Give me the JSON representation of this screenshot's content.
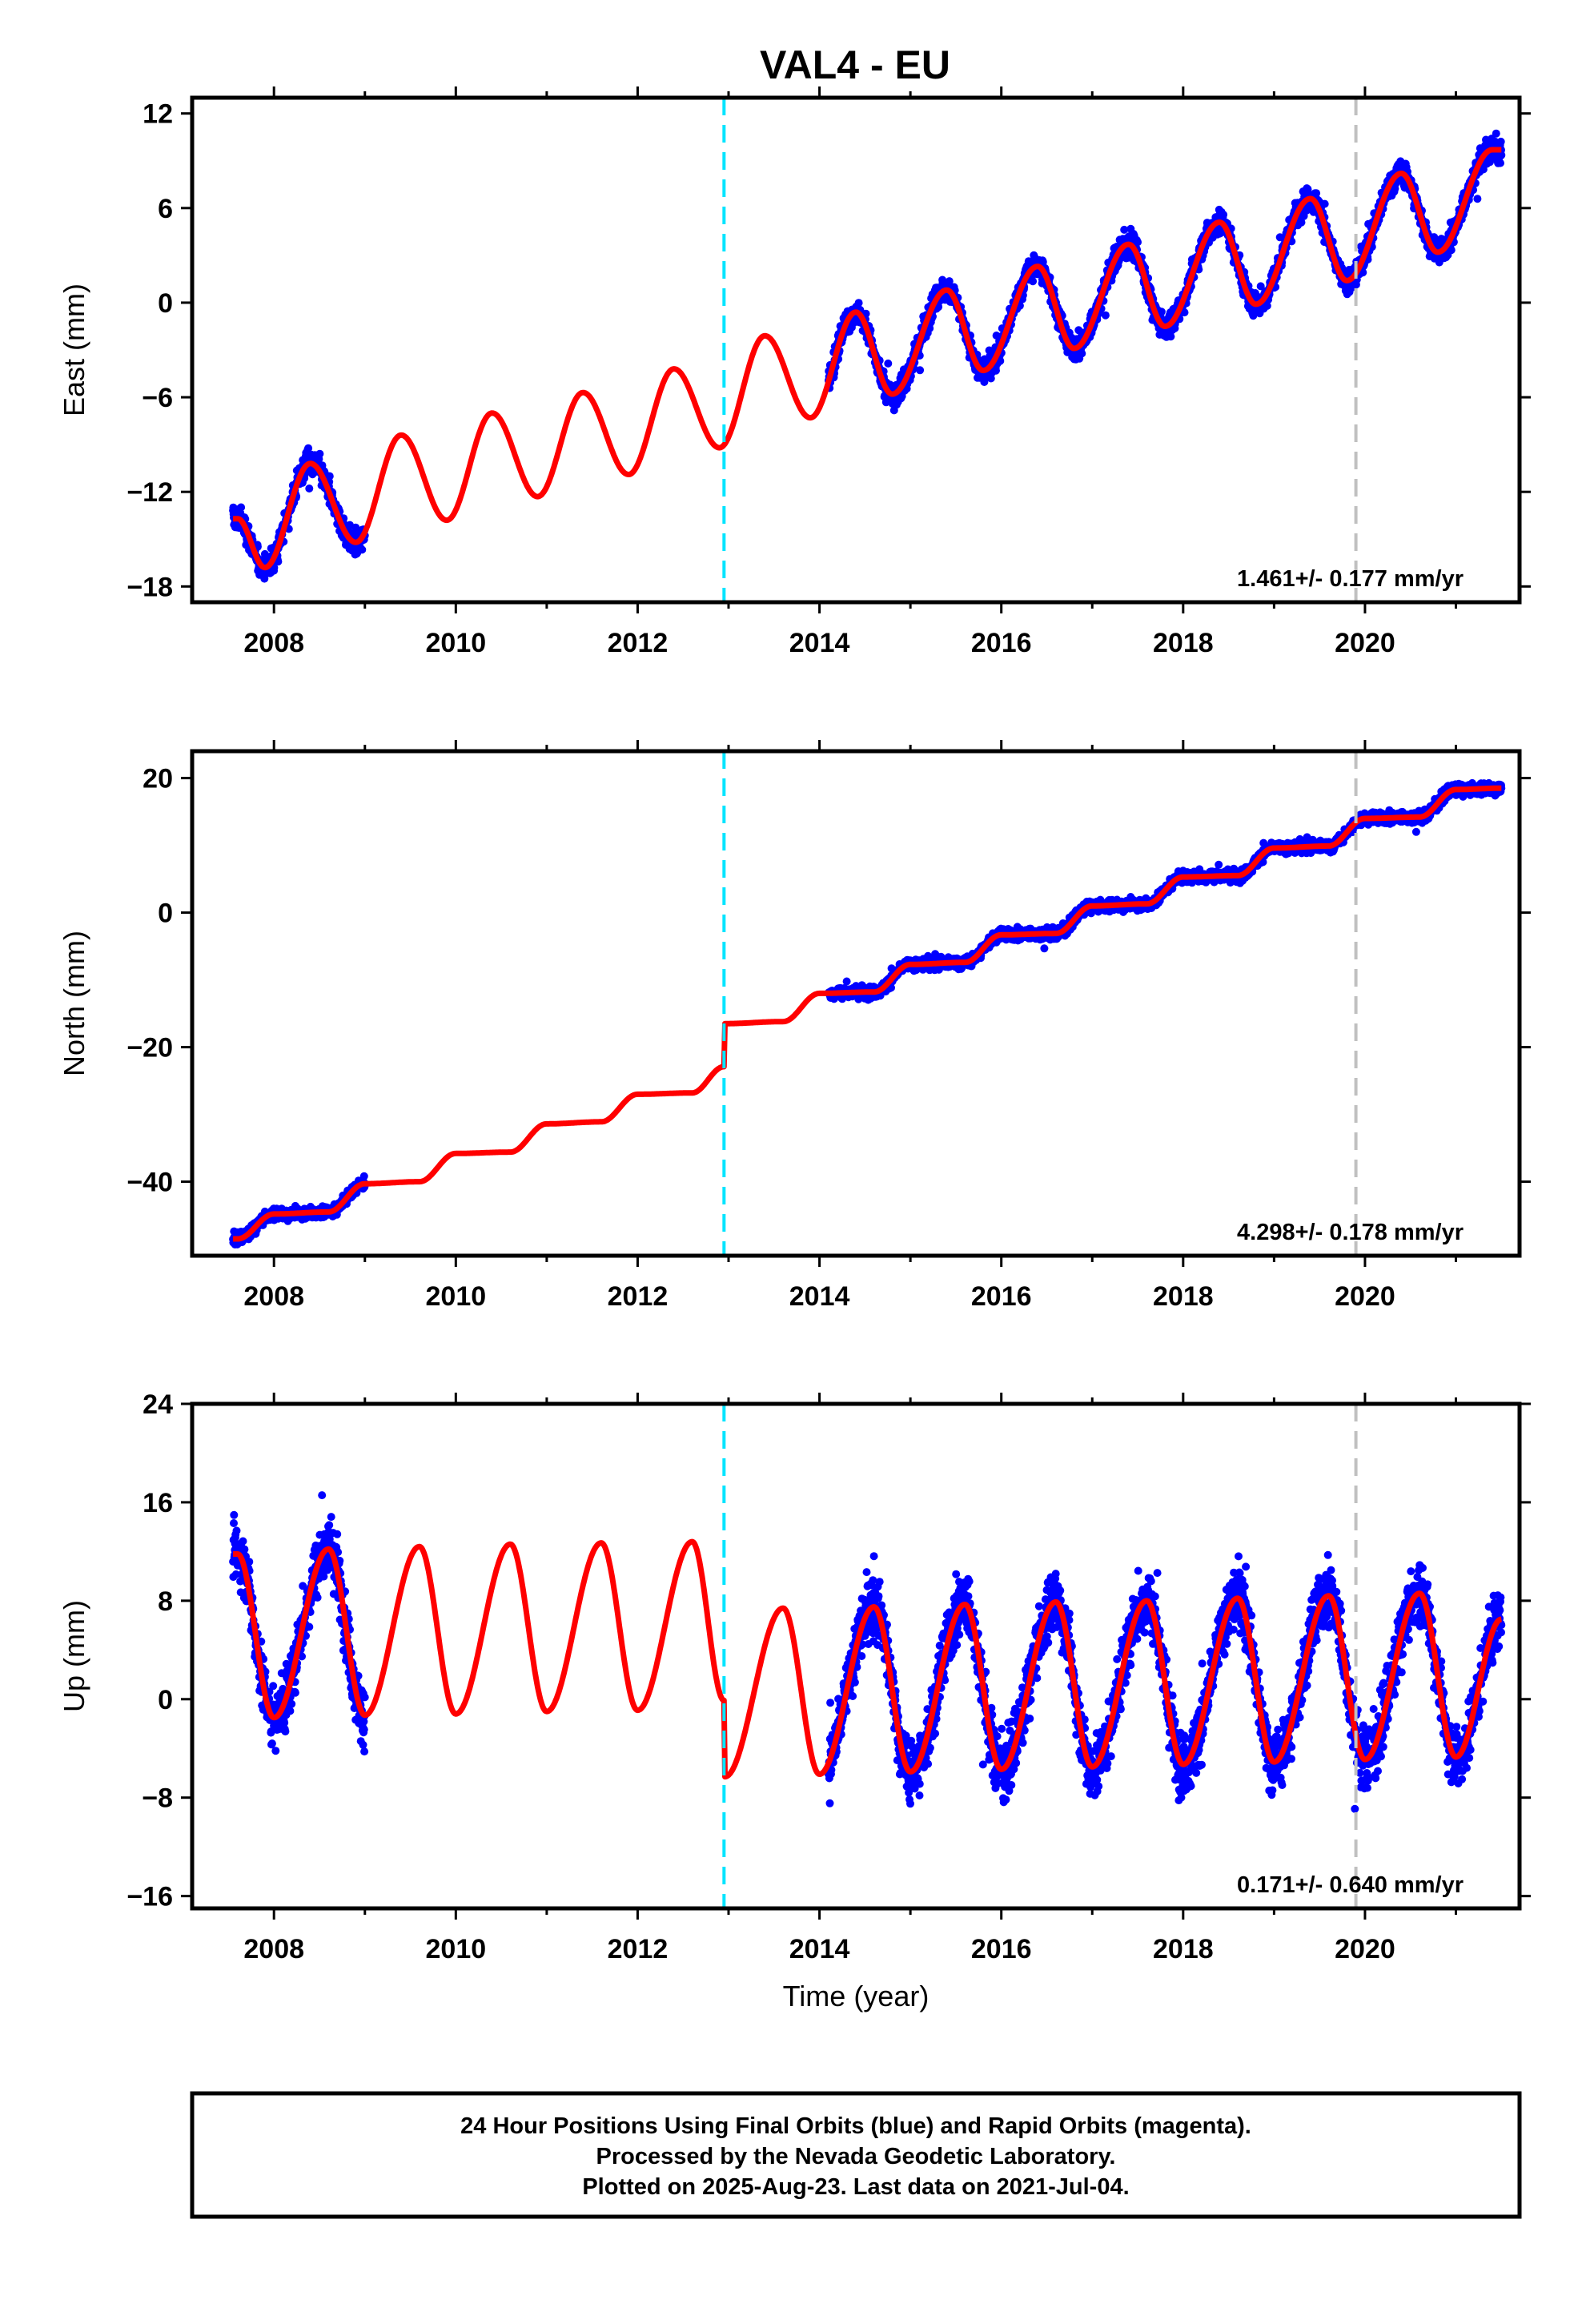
{
  "title": "VAL4 - EU",
  "footer_lines": [
    "24 Hour Positions Using Final Orbits (blue) and Rapid Orbits (magenta).",
    "Processed by the Nevada Geodetic Laboratory.",
    "Plotted on 2025-Aug-23. Last data on 2021-Jul-04."
  ],
  "colors": {
    "data_points": "#0000ff",
    "model_fit": "#ff0000",
    "equipment_change": "#00e5ff",
    "other_marker": "#c0c0c0"
  },
  "markers": {
    "equipment_change_year": 2012.95,
    "other_year": 2019.9
  },
  "chart_data": [
    {
      "type": "scatter",
      "title": "VAL4 - EU",
      "ylabel": "East (mm)",
      "xlabel": "",
      "xlim": [
        2007.1,
        2021.7
      ],
      "ylim": [
        -19,
        13
      ],
      "xticks": [
        2008,
        2010,
        2012,
        2014,
        2016,
        2018,
        2020
      ],
      "yticks": [
        -18,
        -12,
        -6,
        0,
        6,
        12
      ],
      "rate_label": "1.461+/- 0.177 mm/yr",
      "grid": false,
      "series": [
        {
          "name": "24 Hour Positions (Final Orbits)",
          "segments": [
            [
              2007.55,
              2009.0
            ],
            [
              2014.1,
              2021.5
            ]
          ],
          "trend_sample": [
            [
              2007.6,
              -15.5
            ],
            [
              2008.0,
              -16.0
            ],
            [
              2008.4,
              -9.5
            ],
            [
              2008.8,
              -15.5
            ],
            [
              2014.4,
              -1.5
            ],
            [
              2014.8,
              -5.0
            ],
            [
              2015.4,
              0.5
            ],
            [
              2015.8,
              -4.0
            ],
            [
              2016.4,
              2.0
            ],
            [
              2016.8,
              -3.0
            ],
            [
              2017.4,
              3.5
            ],
            [
              2017.8,
              -1.5
            ],
            [
              2018.4,
              4.5
            ],
            [
              2018.8,
              0.0
            ],
            [
              2019.4,
              6.5
            ],
            [
              2019.8,
              1.5
            ],
            [
              2020.4,
              8.0
            ],
            [
              2020.8,
              3.5
            ],
            [
              2021.4,
              9.5
            ]
          ]
        },
        {
          "name": "Model fit",
          "x_range": [
            2007.55,
            2021.5
          ],
          "values": [
            [
              2007.6,
              -13.7
            ],
            [
              2007.9,
              -16.8
            ],
            [
              2008.4,
              -10.2
            ],
            [
              2008.9,
              -15.2
            ],
            [
              2009.4,
              -8.4
            ],
            [
              2009.9,
              -13.8
            ],
            [
              2010.4,
              -7.0
            ],
            [
              2010.9,
              -12.3
            ],
            [
              2011.4,
              -5.7
            ],
            [
              2011.9,
              -10.9
            ],
            [
              2012.4,
              -4.2
            ],
            [
              2012.9,
              -9.2
            ],
            [
              2013.4,
              -2.1
            ],
            [
              2013.9,
              -7.3
            ],
            [
              2014.4,
              -0.6
            ],
            [
              2014.8,
              -5.8
            ],
            [
              2015.4,
              0.8
            ],
            [
              2015.8,
              -4.3
            ],
            [
              2016.4,
              2.3
            ],
            [
              2016.8,
              -2.9
            ],
            [
              2017.4,
              3.7
            ],
            [
              2017.8,
              -1.5
            ],
            [
              2018.4,
              5.1
            ],
            [
              2018.8,
              -0.1
            ],
            [
              2019.4,
              6.6
            ],
            [
              2019.8,
              1.4
            ],
            [
              2020.4,
              8.2
            ],
            [
              2020.8,
              3.2
            ],
            [
              2021.4,
              9.7
            ]
          ]
        }
      ]
    },
    {
      "type": "scatter",
      "ylabel": "North (mm)",
      "xlabel": "",
      "xlim": [
        2007.1,
        2021.7
      ],
      "ylim": [
        -51,
        24
      ],
      "xticks": [
        2008,
        2010,
        2012,
        2014,
        2016,
        2018,
        2020
      ],
      "yticks": [
        -40,
        -20,
        0,
        20
      ],
      "rate_label": "4.298+/- 0.178 mm/yr",
      "grid": false,
      "series": [
        {
          "name": "24 Hour Positions (Final Orbits)",
          "segments": [
            [
              2007.55,
              2009.0
            ],
            [
              2014.1,
              2021.5
            ]
          ],
          "trend_sample": [
            [
              2007.6,
              -48.0
            ],
            [
              2008.0,
              -46.0
            ],
            [
              2008.5,
              -44.5
            ],
            [
              2009.0,
              -39.5
            ],
            [
              2014.2,
              -13.0
            ],
            [
              2015.0,
              -8.5
            ],
            [
              2016.0,
              -4.0
            ],
            [
              2017.0,
              0.5
            ],
            [
              2018.0,
              4.5
            ],
            [
              2019.0,
              9.5
            ],
            [
              2020.0,
              14.0
            ],
            [
              2021.0,
              18.0
            ],
            [
              2021.5,
              18.5
            ]
          ]
        },
        {
          "name": "Model fit",
          "x_range": [
            2007.55,
            2021.5
          ],
          "values": [
            [
              2007.6,
              -48.5
            ],
            [
              2008.0,
              -44.8
            ],
            [
              2008.6,
              -44.5
            ],
            [
              2009.0,
              -40.3
            ],
            [
              2009.6,
              -40.0
            ],
            [
              2010.0,
              -35.8
            ],
            [
              2010.6,
              -35.6
            ],
            [
              2011.0,
              -31.4
            ],
            [
              2011.6,
              -31.1
            ],
            [
              2012.0,
              -27.0
            ],
            [
              2012.6,
              -26.8
            ],
            [
              2012.95,
              -22.9
            ],
            [
              2012.96,
              -16.5
            ],
            [
              2013.6,
              -16.2
            ],
            [
              2014.0,
              -12.0
            ],
            [
              2014.6,
              -11.8
            ],
            [
              2015.0,
              -7.7
            ],
            [
              2015.6,
              -7.4
            ],
            [
              2016.0,
              -3.3
            ],
            [
              2016.6,
              -3.1
            ],
            [
              2017.0,
              1.0
            ],
            [
              2017.6,
              1.3
            ],
            [
              2018.0,
              5.3
            ],
            [
              2018.6,
              5.5
            ],
            [
              2019.0,
              9.6
            ],
            [
              2019.6,
              9.9
            ],
            [
              2020.0,
              14.0
            ],
            [
              2020.6,
              14.2
            ],
            [
              2021.0,
              18.3
            ],
            [
              2021.5,
              18.5
            ]
          ]
        }
      ]
    },
    {
      "type": "scatter",
      "ylabel": "Up (mm)",
      "xlabel": "Time (year)",
      "xlim": [
        2007.1,
        2021.7
      ],
      "ylim": [
        -17,
        24
      ],
      "xticks": [
        2008,
        2010,
        2012,
        2014,
        2016,
        2018,
        2020
      ],
      "yticks": [
        -16,
        -8,
        0,
        8,
        16,
        24
      ],
      "rate_label": "0.171+/- 0.640 mm/yr",
      "grid": false,
      "series": [
        {
          "name": "24 Hour Positions (Final Orbits)",
          "segments": [
            [
              2007.55,
              2009.0
            ],
            [
              2014.1,
              2021.5
            ]
          ],
          "trend_sample": [
            [
              2007.6,
              14.0
            ],
            [
              2008.0,
              -3.0
            ],
            [
              2008.6,
              10.0
            ],
            [
              2009.0,
              -2.0
            ],
            [
              2014.6,
              7.0
            ],
            [
              2015.0,
              -6.0
            ],
            [
              2015.6,
              8.0
            ],
            [
              2016.0,
              -5.0
            ],
            [
              2016.6,
              8.0
            ],
            [
              2017.0,
              -5.0
            ],
            [
              2017.6,
              8.0
            ],
            [
              2018.0,
              -4.5
            ],
            [
              2018.6,
              8.0
            ],
            [
              2019.0,
              -4.5
            ],
            [
              2019.6,
              8.0
            ],
            [
              2020.0,
              -4.5
            ],
            [
              2020.6,
              8.0
            ],
            [
              2021.0,
              -4.5
            ],
            [
              2021.5,
              6.0
            ]
          ]
        },
        {
          "name": "Model fit",
          "x_range": [
            2007.55,
            2021.5
          ],
          "values": [
            [
              2007.6,
              11.8
            ],
            [
              2008.0,
              -1.5
            ],
            [
              2008.6,
              12.2
            ],
            [
              2009.0,
              -1.3
            ],
            [
              2009.6,
              12.4
            ],
            [
              2010.0,
              -1.2
            ],
            [
              2010.6,
              12.6
            ],
            [
              2011.0,
              -1.0
            ],
            [
              2011.6,
              12.7
            ],
            [
              2012.0,
              -0.9
            ],
            [
              2012.6,
              12.8
            ],
            [
              2012.95,
              -0.1
            ],
            [
              2012.96,
              -6.3
            ],
            [
              2013.6,
              7.4
            ],
            [
              2014.0,
              -6.1
            ],
            [
              2014.6,
              7.5
            ],
            [
              2015.0,
              -5.9
            ],
            [
              2015.6,
              7.7
            ],
            [
              2016.0,
              -5.7
            ],
            [
              2016.6,
              7.9
            ],
            [
              2017.0,
              -5.5
            ],
            [
              2017.6,
              8.0
            ],
            [
              2018.0,
              -5.3
            ],
            [
              2018.6,
              8.2
            ],
            [
              2019.0,
              -5.1
            ],
            [
              2019.6,
              8.4
            ],
            [
              2020.0,
              -4.9
            ],
            [
              2020.6,
              8.6
            ],
            [
              2021.0,
              -4.7
            ],
            [
              2021.5,
              6.5
            ]
          ]
        }
      ]
    }
  ]
}
